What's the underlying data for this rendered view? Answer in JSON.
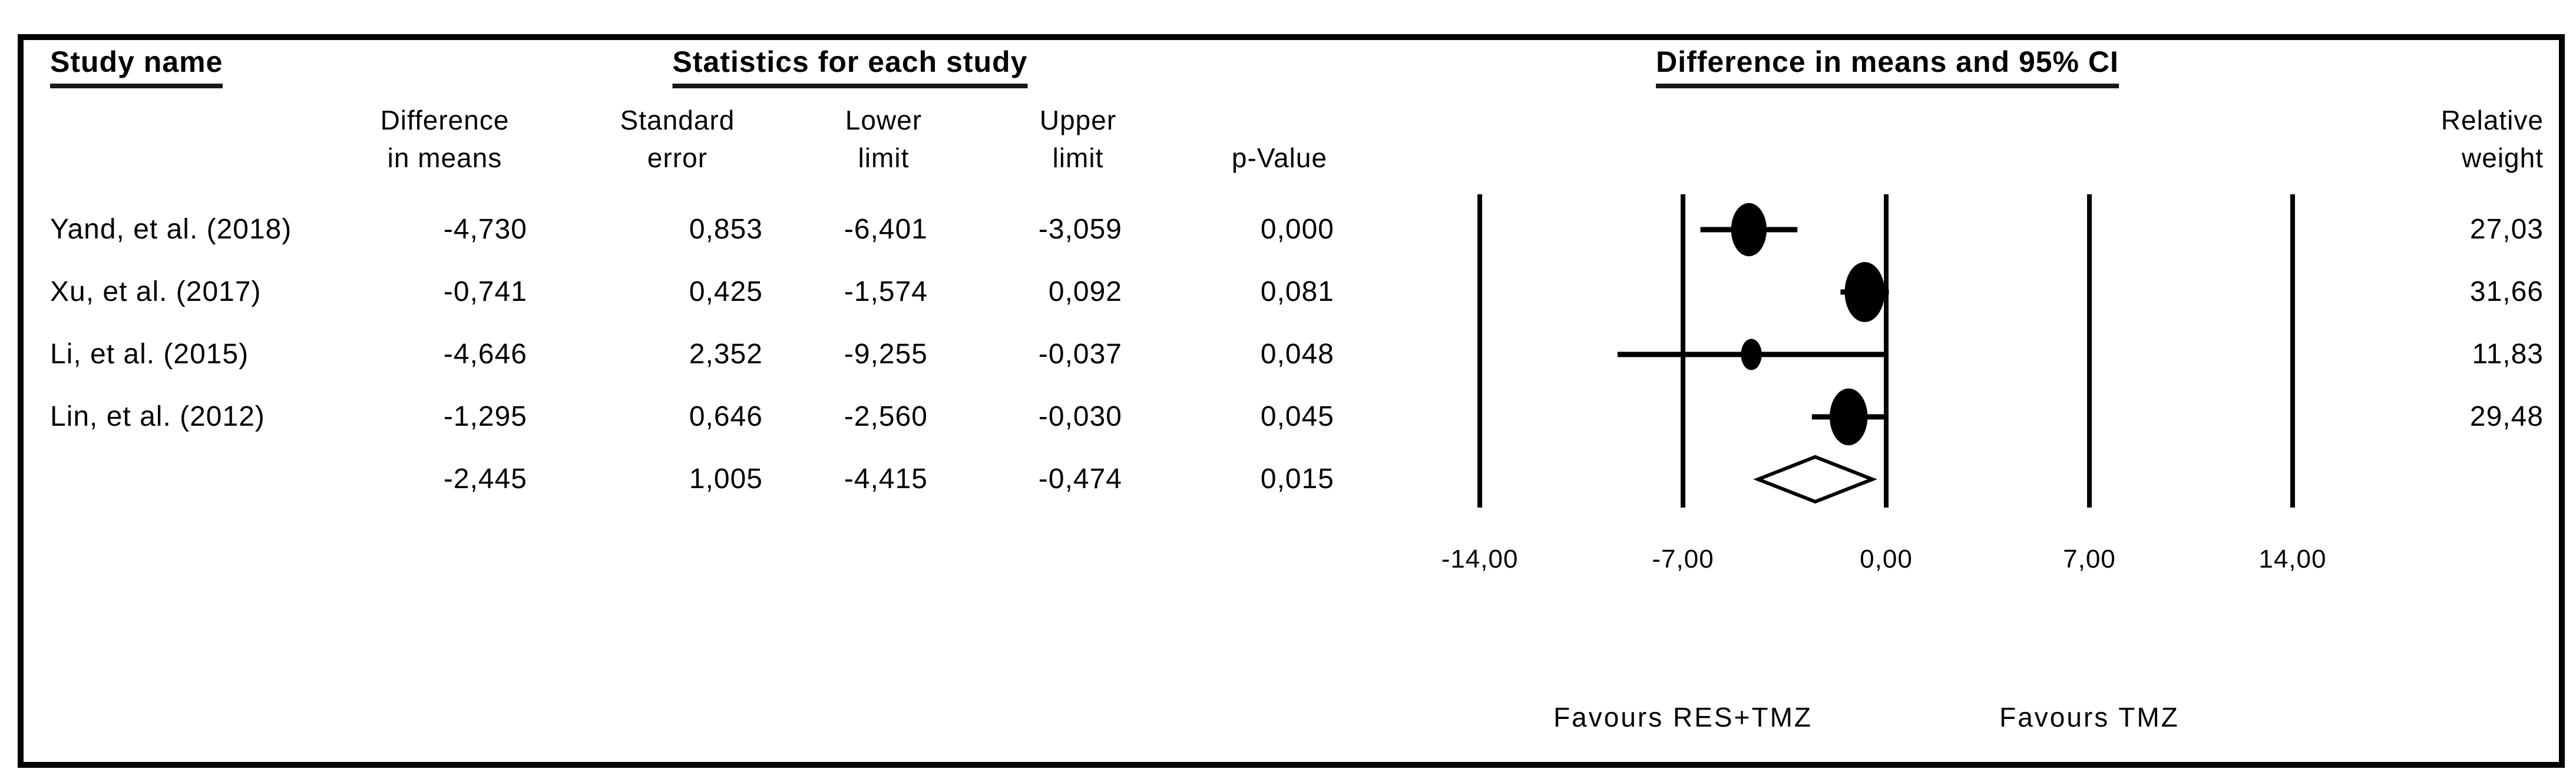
{
  "header": {
    "study_name": "Study name",
    "statistics_title": "Statistics for each study",
    "plot_title": "Difference in means and 95% CI",
    "col_diff": {
      "l1": "Difference",
      "l2": "in means"
    },
    "col_se": {
      "l1": "Standard",
      "l2": "error"
    },
    "col_lower": {
      "l1": "Lower",
      "l2": "limit"
    },
    "col_upper": {
      "l1": "Upper",
      "l2": "limit"
    },
    "col_p": "p-Value",
    "col_weight": {
      "l1": "Relative",
      "l2": "weight"
    }
  },
  "studies": [
    {
      "name": "Yand, et al. (2018)",
      "diff": "-4,730",
      "se": "0,853",
      "lower": "-6,401",
      "upper": "-3,059",
      "p": "0,000",
      "weight": "27,03",
      "diff_v": -4.73,
      "lower_v": -6.401,
      "upper_v": -3.059,
      "weight_v": 27.03
    },
    {
      "name": "Xu, et al. (2017)",
      "diff": "-0,741",
      "se": "0,425",
      "lower": "-1,574",
      "upper": "0,092",
      "p": "0,081",
      "weight": "31,66",
      "diff_v": -0.741,
      "lower_v": -1.574,
      "upper_v": 0.092,
      "weight_v": 31.66
    },
    {
      "name": "Li, et al. (2015)",
      "diff": "-4,646",
      "se": "2,352",
      "lower": "-9,255",
      "upper": "-0,037",
      "p": "0,048",
      "weight": "11,83",
      "diff_v": -4.646,
      "lower_v": -9.255,
      "upper_v": -0.037,
      "weight_v": 11.83
    },
    {
      "name": "Lin, et al. (2012)",
      "diff": "-1,295",
      "se": "0,646",
      "lower": "-2,560",
      "upper": "-0,030",
      "p": "0,045",
      "weight": "29,48",
      "diff_v": -1.295,
      "lower_v": -2.56,
      "upper_v": -0.03,
      "weight_v": 29.48
    }
  ],
  "summary": {
    "diff": "-2,445",
    "se": "1,005",
    "lower": "-4,415",
    "upper": "-0,474",
    "p": "0,015",
    "diff_v": -2.445,
    "lower_v": -4.415,
    "upper_v": -0.474
  },
  "axis": {
    "ticks": [
      {
        "label": "-14,00",
        "v": -14
      },
      {
        "label": "-7,00",
        "v": -7
      },
      {
        "label": "0,00",
        "v": 0
      },
      {
        "label": "7,00",
        "v": 7
      },
      {
        "label": "14,00",
        "v": 14
      }
    ]
  },
  "favours": {
    "left": "Favours RES+TMZ",
    "right": "Favours TMZ"
  },
  "colors": {
    "ink": "#000000",
    "paper": "#ffffff"
  },
  "chart_data": {
    "type": "scatter",
    "subtype": "forest-plot",
    "title": "Difference in means and 95% CI",
    "effect_measure": "Difference in means",
    "xlim": [
      -14,
      14
    ],
    "x_ticks": [
      -14,
      -7,
      0,
      7,
      14
    ],
    "grid": "vertical-lines-at-ticks",
    "x_axis_labels": [
      "-14,00",
      "-7,00",
      "0,00",
      "7,00",
      "14,00"
    ],
    "direction_labels": {
      "left_of_zero": "Favours RES+TMZ",
      "right_of_zero": "Favours TMZ"
    },
    "series": [
      {
        "name": "Yand, et al. (2018)",
        "mean": -4.73,
        "se": 0.853,
        "ci95": [
          -6.401,
          -3.059
        ],
        "p_value": 0.0,
        "relative_weight": 27.03
      },
      {
        "name": "Xu, et al. (2017)",
        "mean": -0.741,
        "se": 0.425,
        "ci95": [
          -1.574,
          0.092
        ],
        "p_value": 0.081,
        "relative_weight": 31.66
      },
      {
        "name": "Li, et al. (2015)",
        "mean": -4.646,
        "se": 2.352,
        "ci95": [
          -9.255,
          -0.037
        ],
        "p_value": 0.048,
        "relative_weight": 11.83
      },
      {
        "name": "Lin, et al. (2012)",
        "mean": -1.295,
        "se": 0.646,
        "ci95": [
          -2.56,
          -0.03
        ],
        "p_value": 0.045,
        "relative_weight": 29.48
      }
    ],
    "overall": {
      "mean": -2.445,
      "se": 1.005,
      "ci95": [
        -4.415,
        -0.474
      ],
      "p_value": 0.015,
      "marker": "open-diamond"
    }
  }
}
